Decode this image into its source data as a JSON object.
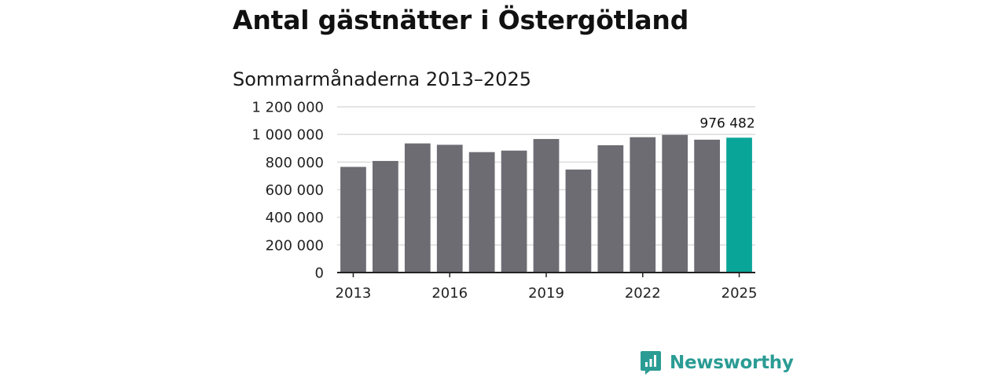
{
  "chart_data": {
    "type": "bar",
    "title": "Antal gästnätter i Östergötland",
    "subtitle": "Sommarmånaderna 2013–2025",
    "xlabel": "",
    "ylabel": "",
    "categories": [
      "2013",
      "2014",
      "2015",
      "2016",
      "2017",
      "2018",
      "2019",
      "2020",
      "2021",
      "2022",
      "2023",
      "2024",
      "2025"
    ],
    "values": [
      765000,
      808000,
      935000,
      925000,
      872000,
      883000,
      967000,
      746000,
      922000,
      980000,
      997000,
      962000,
      976482
    ],
    "ylim": [
      0,
      1200000
    ],
    "yticks": [
      0,
      200000,
      400000,
      600000,
      800000,
      1000000,
      1200000
    ],
    "ytick_labels": [
      "0",
      "200 000",
      "400 000",
      "600 000",
      "800 000",
      "1 000 000",
      "1 200 000"
    ],
    "xtick_labels": [
      "2013",
      "2016",
      "2019",
      "2022",
      "2025"
    ],
    "highlight": {
      "category": "2025",
      "label": "976 482"
    },
    "grid": true,
    "legend": "none",
    "colors": {
      "bar": "#6d6c73",
      "highlight": "#0aa599",
      "grid": "#dcdcdc",
      "axis": "#222222"
    }
  },
  "brand": {
    "name": "Newsworthy",
    "icon": "newsworthy-logo-icon",
    "color": "#2a9c94"
  }
}
